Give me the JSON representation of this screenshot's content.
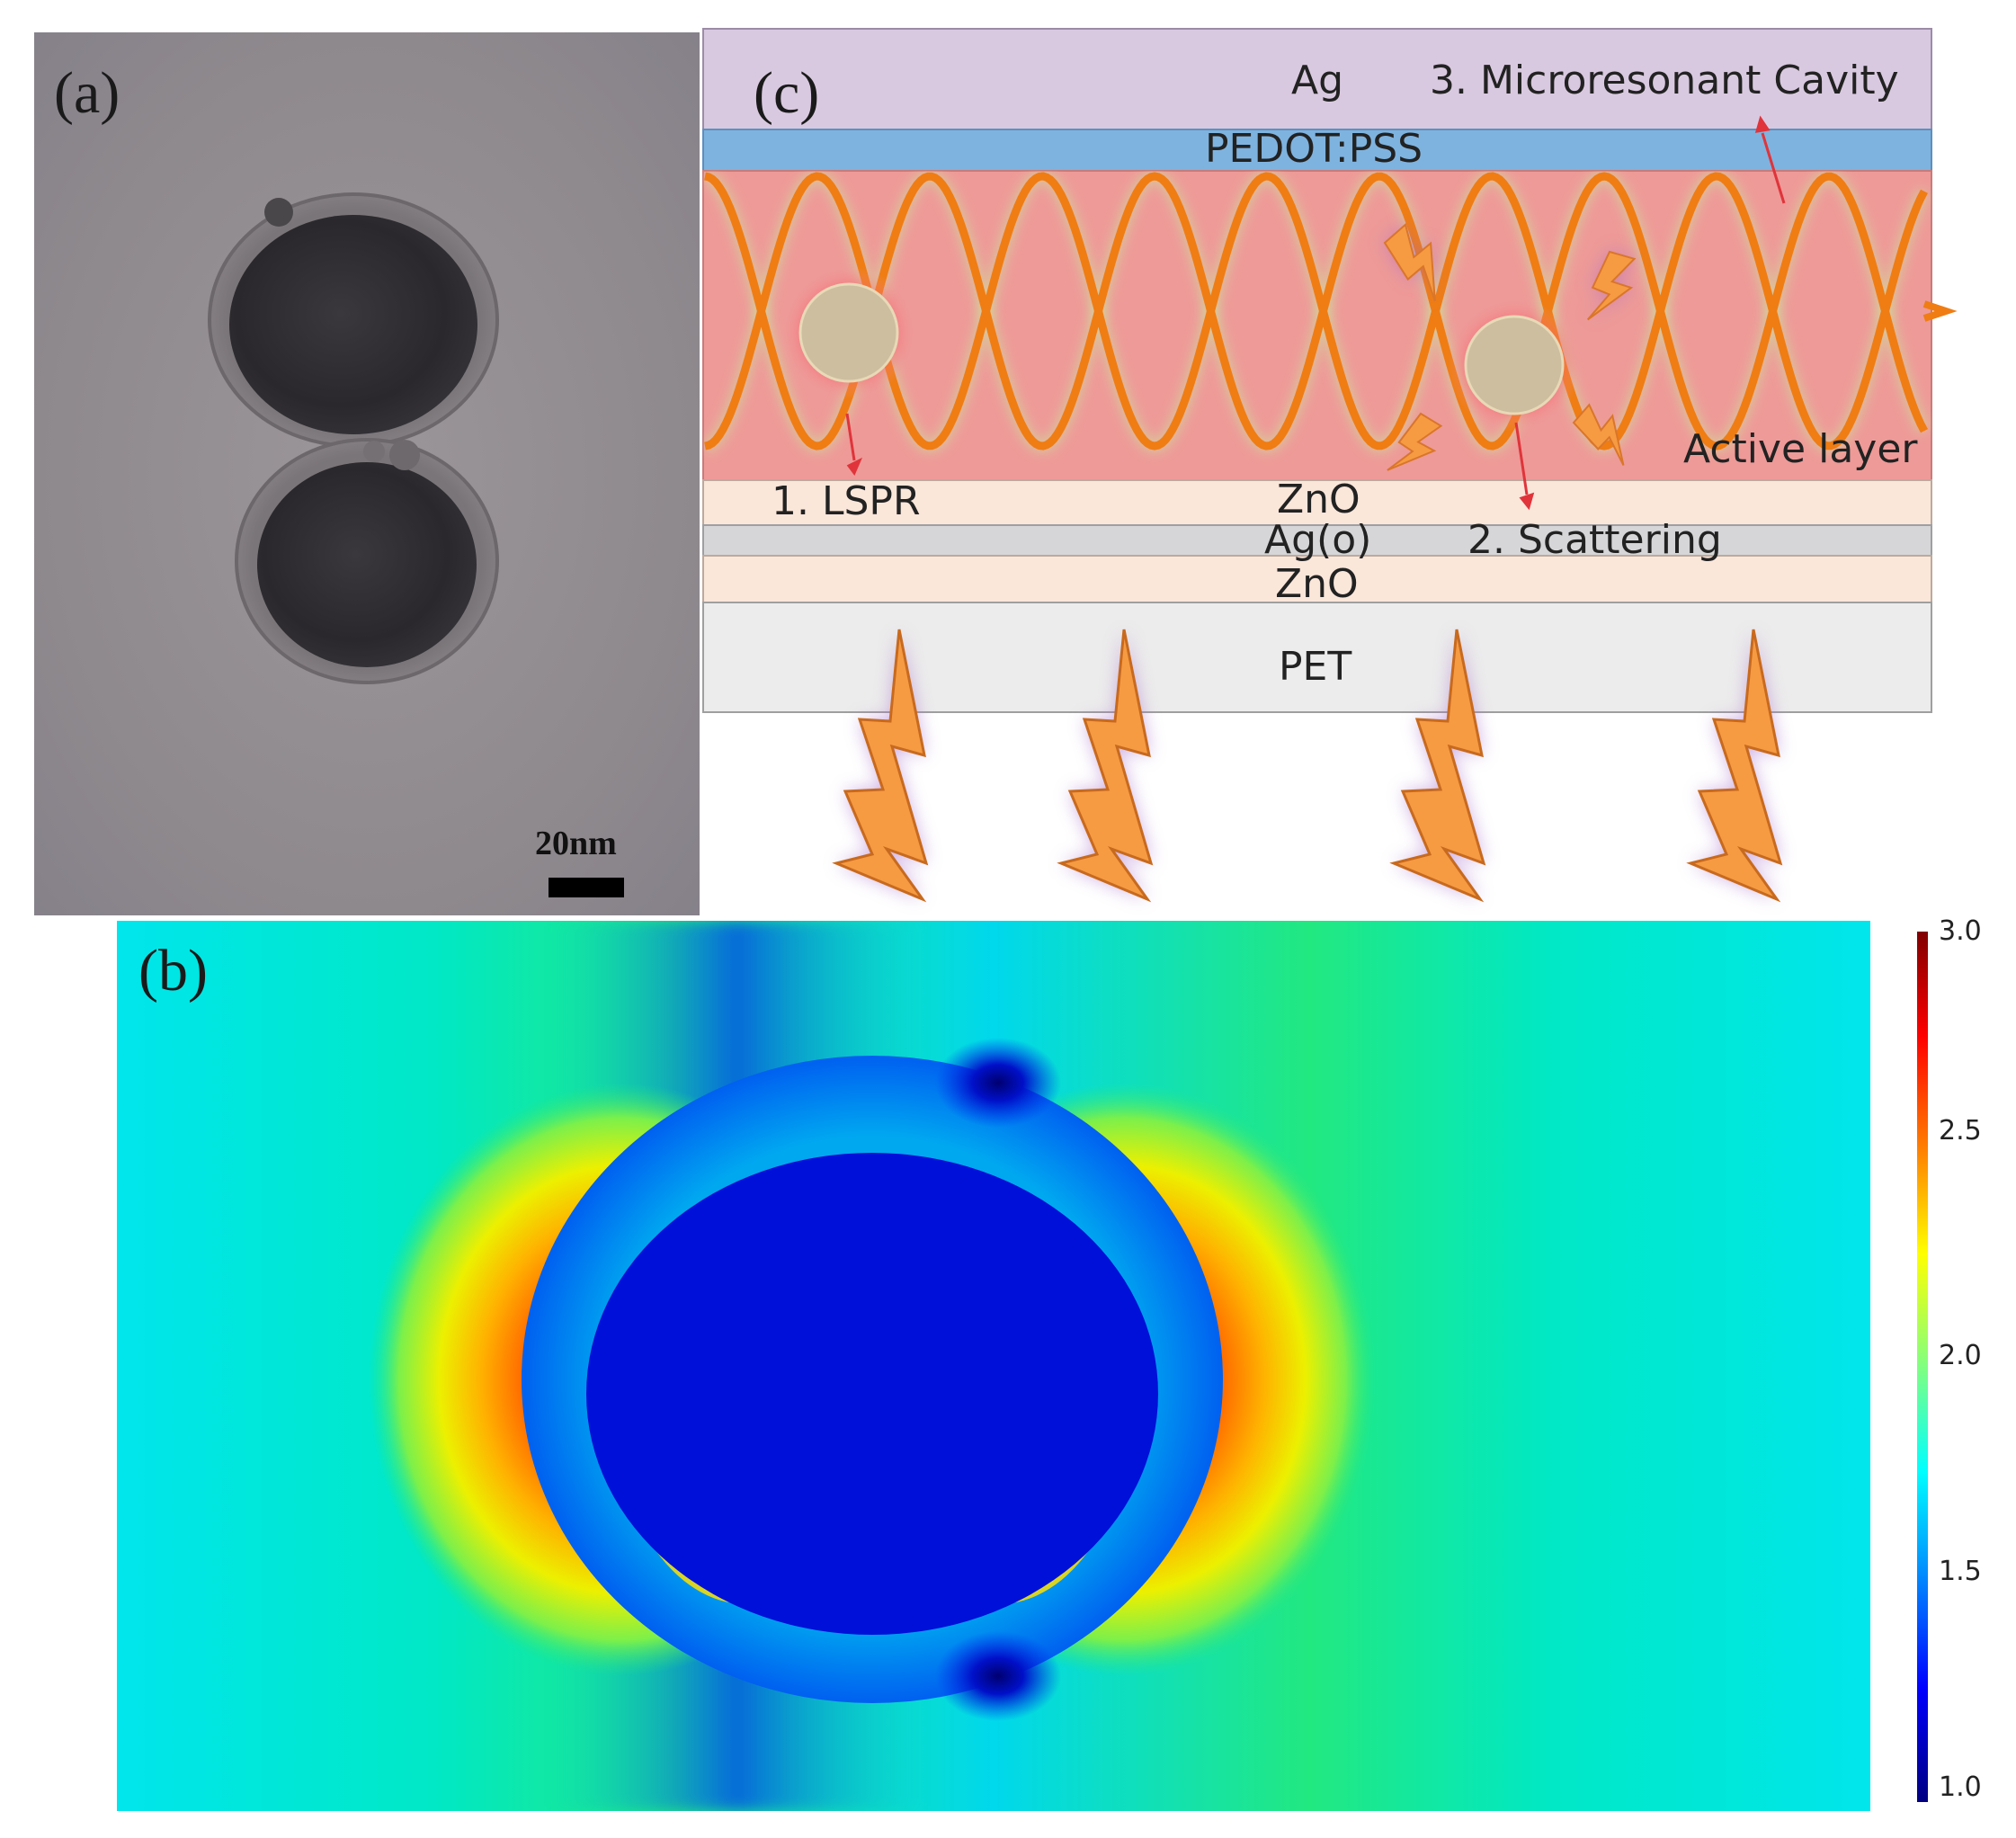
{
  "panel_a": {
    "label": "(a)",
    "scale_bar_label": "20nm"
  },
  "panel_b": {
    "label": "(b)",
    "colorbar": {
      "ticks": [
        "3.0",
        "2.5",
        "2.0",
        "1.5",
        "1.0"
      ],
      "tick_values": [
        3.0,
        2.5,
        2.0,
        1.5,
        1.0
      ],
      "range": [
        1.0,
        3.0
      ]
    }
  },
  "panel_c": {
    "label": "(c)",
    "layers": {
      "ag_top": "Ag",
      "pedot": "PEDOT:PSS",
      "active": "Active layer",
      "zno_top": "ZnO",
      "ag_o": "Ag(o)",
      "zno_bottom": "ZnO",
      "pet": "PET"
    },
    "annotations": {
      "lspr": "1. LSPR",
      "scattering": "2. Scattering",
      "cavity": "3. Microresonant Cavity"
    },
    "colors": {
      "ag": "#d9c9e0",
      "pedot": "#7fb3df",
      "active": "#ee9a98",
      "zno": "#fbe6da",
      "ag_o": "#d6d6d8",
      "pet": "#ececec",
      "wave": "#ef7d14",
      "bolt": "#f79b43",
      "bolt_glow": "#a468c8"
    }
  }
}
